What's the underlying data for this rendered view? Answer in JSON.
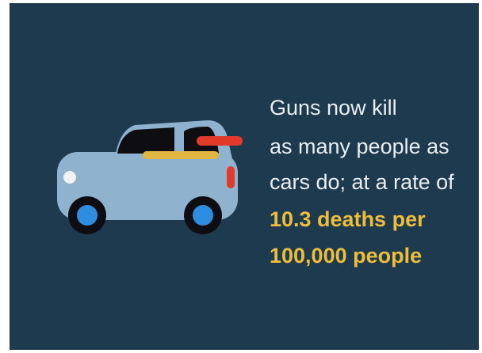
{
  "text": {
    "lines": [
      "Guns now kill",
      "as many people as",
      "cars do; at a rate of"
    ],
    "highlight": [
      "10.3 deaths per",
      "100,000 people"
    ]
  }
}
